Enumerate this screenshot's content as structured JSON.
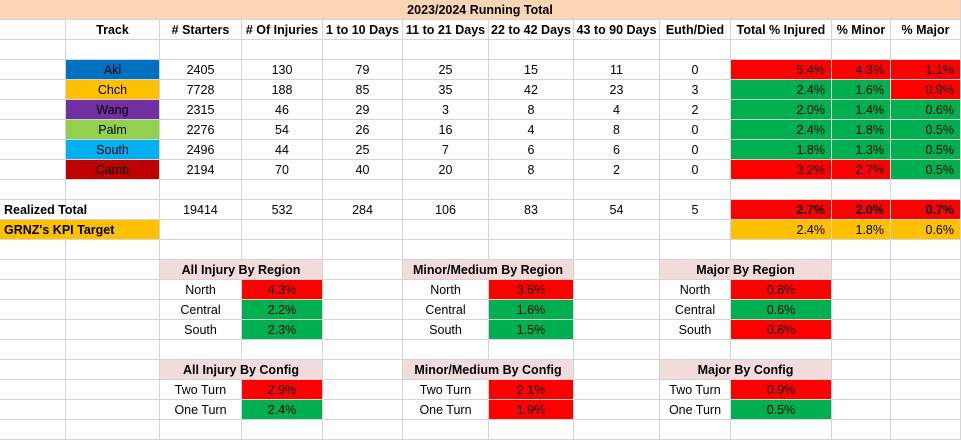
{
  "colors": {
    "title_bg": "#fcd5b4",
    "bad": "#ff0000",
    "good": "#00b050",
    "target": "#ffc000",
    "section_header": "#f2dcdb"
  },
  "title": "2023/2024 Running Total",
  "headers": [
    "Track",
    "# Starters",
    "# Of Injuries",
    "1 to 10 Days",
    "11 to 21 Days",
    "22 to 42 Days",
    "43 to 90 Days",
    "Euth/Died",
    "Total % Injured",
    "% Minor",
    "% Major"
  ],
  "tracks": [
    {
      "name": "Akl",
      "color": "#0070c0",
      "values": [
        "2405",
        "130",
        "79",
        "25",
        "15",
        "11",
        "0"
      ],
      "total_pct": "5.4%",
      "minor_pct": "4.3%",
      "major_pct": "1.1%",
      "status": [
        "red",
        "red",
        "red"
      ]
    },
    {
      "name": "Chch",
      "color": "#ffc000",
      "values": [
        "7728",
        "188",
        "85",
        "35",
        "42",
        "23",
        "3"
      ],
      "total_pct": "2.4%",
      "minor_pct": "1.6%",
      "major_pct": "0.9%",
      "status": [
        "green",
        "green",
        "red"
      ]
    },
    {
      "name": "Wang",
      "color": "#7030a0",
      "values": [
        "2315",
        "46",
        "29",
        "3",
        "8",
        "4",
        "2"
      ],
      "total_pct": "2.0%",
      "minor_pct": "1.4%",
      "major_pct": "0.6%",
      "status": [
        "green",
        "green",
        "green"
      ]
    },
    {
      "name": "Palm",
      "color": "#92d050",
      "values": [
        "2276",
        "54",
        "26",
        "16",
        "4",
        "8",
        "0"
      ],
      "total_pct": "2.4%",
      "minor_pct": "1.8%",
      "major_pct": "0.5%",
      "status": [
        "green",
        "green",
        "green"
      ]
    },
    {
      "name": "South",
      "color": "#00b0f0",
      "values": [
        "2496",
        "44",
        "25",
        "7",
        "6",
        "6",
        "0"
      ],
      "total_pct": "1.8%",
      "minor_pct": "1.3%",
      "major_pct": "0.5%",
      "status": [
        "green",
        "green",
        "green"
      ]
    },
    {
      "name": "Camb",
      "color": "#c00000",
      "values": [
        "2194",
        "70",
        "40",
        "20",
        "8",
        "2",
        "0"
      ],
      "total_pct": "3.2%",
      "minor_pct": "2.7%",
      "major_pct": "0.5%",
      "status": [
        "red",
        "red",
        "green"
      ]
    }
  ],
  "realized": {
    "label": "Realized Total",
    "values": [
      "19414",
      "532",
      "284",
      "106",
      "83",
      "54",
      "5"
    ],
    "total_pct": "2.7%",
    "minor_pct": "2.0%",
    "major_pct": "0.7%"
  },
  "kpi": {
    "label": "GRNZ's KPI Target",
    "total_pct": "2.4%",
    "minor_pct": "1.8%",
    "major_pct": "0.6%"
  },
  "region_tables": [
    {
      "title": "All Injury By Region",
      "rows": [
        {
          "label": "North",
          "value": "4.3%",
          "status": "red"
        },
        {
          "label": "Central",
          "value": "2.2%",
          "status": "green"
        },
        {
          "label": "South",
          "value": "2.3%",
          "status": "green"
        }
      ]
    },
    {
      "title": "Minor/Medium By Region",
      "rows": [
        {
          "label": "North",
          "value": "3.6%",
          "status": "red"
        },
        {
          "label": "Central",
          "value": "1.6%",
          "status": "green"
        },
        {
          "label": "South",
          "value": "1.5%",
          "status": "green"
        }
      ]
    },
    {
      "title": "Major By Region",
      "rows": [
        {
          "label": "North",
          "value": "0.8%",
          "status": "red"
        },
        {
          "label": "Central",
          "value": "0.6%",
          "status": "green"
        },
        {
          "label": "South",
          "value": "0.8%",
          "status": "red"
        }
      ]
    }
  ],
  "config_tables": [
    {
      "title": "All Injury By Config",
      "rows": [
        {
          "label": "Two Turn",
          "value": "2.9%",
          "status": "red"
        },
        {
          "label": "One Turn",
          "value": "2.4%",
          "status": "green"
        }
      ]
    },
    {
      "title": "Minor/Medium By Config",
      "rows": [
        {
          "label": "Two Turn",
          "value": "2.1%",
          "status": "red"
        },
        {
          "label": "One Turn",
          "value": "1.9%",
          "status": "red"
        }
      ]
    },
    {
      "title": "Major By Config",
      "rows": [
        {
          "label": "Two Turn",
          "value": "0.9%",
          "status": "red"
        },
        {
          "label": "One Turn",
          "value": "0.5%",
          "status": "green"
        }
      ]
    }
  ]
}
